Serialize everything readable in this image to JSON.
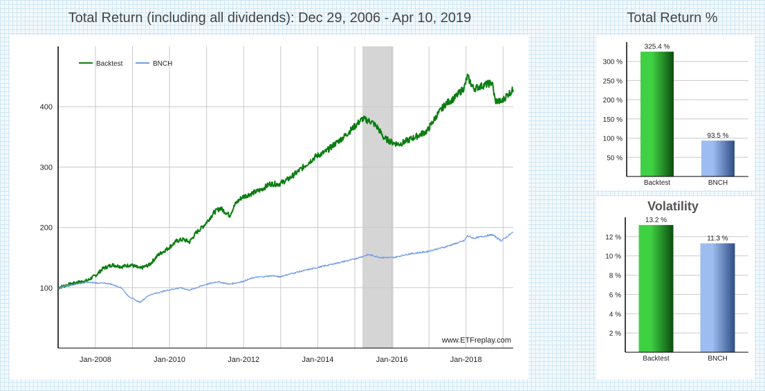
{
  "main": {
    "title": "Total Return (including all dividends): Dec 29, 2006 - Apr 10, 2019"
  },
  "side": {
    "total_return_title": "Total Return %",
    "volatility_title": "Volatility"
  },
  "watermark": "www.ETFreplay.com",
  "colors": {
    "backtest": "#0a7d10",
    "bench": "#6f9be6",
    "shade": "#d5d5d5",
    "grid": "#c8c8c8"
  },
  "chart_data": [
    {
      "type": "line",
      "title": "Total Return (including all dividends): Dec 29, 2006 - Apr 10, 2019",
      "x_ticks": [
        "Jan-2008",
        "Jan-2010",
        "Jan-2012",
        "Jan-2014",
        "Jan-2016",
        "Jan-2018"
      ],
      "y_ticks": [
        "100",
        "200",
        "300",
        "400"
      ],
      "ylim": [
        0,
        500
      ],
      "xlim": [
        "2006-12-29",
        "2019-04-10"
      ],
      "grid": true,
      "legend": "top-left",
      "shaded_region": [
        "2015-03",
        "2016-01"
      ],
      "series": [
        {
          "name": "Backtest",
          "color": "#0a7d10",
          "points": [
            [
              "2006-12-29",
              100
            ],
            [
              "2007-03",
              104
            ],
            [
              "2007-06",
              108
            ],
            [
              "2007-10",
              112
            ],
            [
              "2008-01",
              122
            ],
            [
              "2008-03",
              132
            ],
            [
              "2008-06",
              138
            ],
            [
              "2008-09",
              135
            ],
            [
              "2008-12",
              138
            ],
            [
              "2009-03",
              132
            ],
            [
              "2009-06",
              138
            ],
            [
              "2009-09",
              155
            ],
            [
              "2009-12",
              165
            ],
            [
              "2010-03",
              178
            ],
            [
              "2010-05",
              180
            ],
            [
              "2010-07",
              176
            ],
            [
              "2010-09",
              190
            ],
            [
              "2010-12",
              205
            ],
            [
              "2011-03",
              225
            ],
            [
              "2011-05",
              232
            ],
            [
              "2011-08",
              220
            ],
            [
              "2011-10",
              240
            ],
            [
              "2011-12",
              250
            ],
            [
              "2012-03",
              256
            ],
            [
              "2012-06",
              262
            ],
            [
              "2012-09",
              272
            ],
            [
              "2012-12",
              272
            ],
            [
              "2013-03",
              280
            ],
            [
              "2013-06",
              292
            ],
            [
              "2013-09",
              305
            ],
            [
              "2013-12",
              318
            ],
            [
              "2014-03",
              325
            ],
            [
              "2014-06",
              338
            ],
            [
              "2014-09",
              350
            ],
            [
              "2014-12",
              365
            ],
            [
              "2015-03",
              380
            ],
            [
              "2015-06",
              375
            ],
            [
              "2015-08",
              365
            ],
            [
              "2015-10",
              348
            ],
            [
              "2016-01",
              340
            ],
            [
              "2016-03",
              338
            ],
            [
              "2016-06",
              345
            ],
            [
              "2016-09",
              352
            ],
            [
              "2016-12",
              360
            ],
            [
              "2017-03",
              385
            ],
            [
              "2017-06",
              405
            ],
            [
              "2017-09",
              415
            ],
            [
              "2017-12",
              432
            ],
            [
              "2018-01",
              450
            ],
            [
              "2018-03",
              430
            ],
            [
              "2018-06",
              435
            ],
            [
              "2018-09",
              440
            ],
            [
              "2018-10",
              410
            ],
            [
              "2018-12",
              408
            ],
            [
              "2019-02",
              420
            ],
            [
              "2019-04-10",
              428
            ]
          ]
        },
        {
          "name": "BNCH",
          "color": "#6f9be6",
          "points": [
            [
              "2006-12-29",
              100
            ],
            [
              "2007-06",
              106
            ],
            [
              "2007-10",
              109
            ],
            [
              "2008-01",
              108
            ],
            [
              "2008-05",
              107
            ],
            [
              "2008-09",
              100
            ],
            [
              "2008-11",
              87
            ],
            [
              "2009-02",
              78
            ],
            [
              "2009-03",
              76
            ],
            [
              "2009-06",
              88
            ],
            [
              "2009-12",
              96
            ],
            [
              "2010-04",
              100
            ],
            [
              "2010-07",
              96
            ],
            [
              "2010-12",
              105
            ],
            [
              "2011-04",
              110
            ],
            [
              "2011-08",
              106
            ],
            [
              "2011-12",
              110
            ],
            [
              "2012-04",
              117
            ],
            [
              "2012-10",
              120
            ],
            [
              "2012-12",
              118
            ],
            [
              "2013-06",
              126
            ],
            [
              "2013-12",
              133
            ],
            [
              "2014-06",
              140
            ],
            [
              "2014-12",
              147
            ],
            [
              "2015-05",
              155
            ],
            [
              "2015-09",
              150
            ],
            [
              "2016-01",
              150
            ],
            [
              "2016-06",
              156
            ],
            [
              "2016-12",
              160
            ],
            [
              "2017-06",
              168
            ],
            [
              "2017-12",
              178
            ],
            [
              "2018-01",
              186
            ],
            [
              "2018-03",
              182
            ],
            [
              "2018-09",
              188
            ],
            [
              "2018-12",
              178
            ],
            [
              "2019-04-10",
              192
            ]
          ]
        }
      ]
    },
    {
      "type": "bar",
      "title": "Total Return %",
      "categories": [
        "Backtest",
        "BNCH"
      ],
      "values": [
        325.4,
        93.5
      ],
      "labels": [
        "325.4 %",
        "93.5 %"
      ],
      "y_ticks": [
        "50 %",
        "100 %",
        "150 %",
        "200 %",
        "250 %",
        "300 %"
      ],
      "ylim": [
        0,
        350
      ]
    },
    {
      "type": "bar",
      "title": "Volatility",
      "categories": [
        "Backtest",
        "BNCH"
      ],
      "values": [
        13.2,
        11.3
      ],
      "labels": [
        "13.2 %",
        "11.3 %"
      ],
      "y_ticks": [
        "2 %",
        "4 %",
        "6 %",
        "8 %",
        "10 %",
        "12 %"
      ],
      "ylim": [
        0,
        14
      ]
    }
  ]
}
